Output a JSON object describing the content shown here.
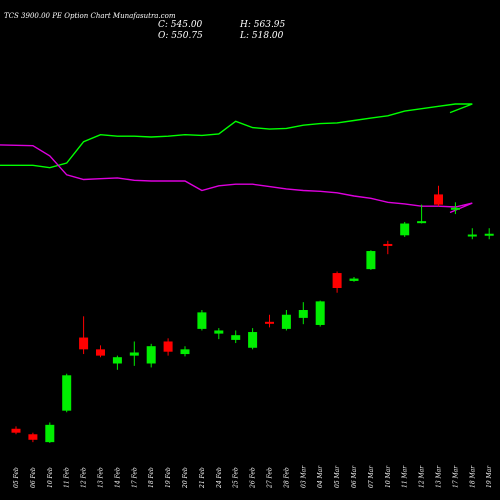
{
  "chart_data": {
    "type": "candlestick",
    "title": "TCS 3900.00 PE Option Chart Munafasutra.com",
    "summary": {
      "C": "545.00",
      "O": "550.75",
      "H": "563.95",
      "L": "518.00"
    },
    "summary_labels": {
      "C": "C:",
      "O": "O:",
      "H": "H:",
      "L": "L:"
    },
    "price_range": [
      130,
      645
    ],
    "categories": [
      "05 Feb",
      "06 Feb",
      "10 Feb",
      "11 Feb",
      "12 Feb",
      "13 Feb",
      "14 Feb",
      "17 Feb",
      "18 Feb",
      "19 Feb",
      "20 Feb",
      "21 Feb",
      "24 Feb",
      "25 Feb",
      "26 Feb",
      "27 Feb",
      "28 Feb",
      "03 Mar",
      "04 Mar",
      "05 Mar",
      "06 Mar",
      "07 Mar",
      "10 Mar",
      "11 Mar",
      "12 Mar",
      "13 Mar",
      "17 Mar",
      "18 Mar",
      "19 Mar"
    ],
    "candles": [
      {
        "date": "05 Feb",
        "open": 157,
        "high": 160,
        "low": 150,
        "close": 152
      },
      {
        "date": "06 Feb",
        "open": 150,
        "high": 152,
        "low": 140,
        "close": 143
      },
      {
        "date": "10 Feb",
        "open": 140,
        "high": 165,
        "low": 139,
        "close": 162
      },
      {
        "date": "11 Feb",
        "open": 180,
        "high": 227,
        "low": 178,
        "close": 225
      },
      {
        "date": "12 Feb",
        "open": 273,
        "high": 300,
        "low": 252,
        "close": 258
      },
      {
        "date": "13 Feb",
        "open": 258,
        "high": 263,
        "low": 248,
        "close": 250
      },
      {
        "date": "14 Feb",
        "open": 240,
        "high": 250,
        "low": 232,
        "close": 248
      },
      {
        "date": "17 Feb",
        "open": 250,
        "high": 268,
        "low": 237,
        "close": 254
      },
      {
        "date": "18 Feb",
        "open": 240,
        "high": 265,
        "low": 235,
        "close": 262
      },
      {
        "date": "19 Feb",
        "open": 268,
        "high": 272,
        "low": 250,
        "close": 255
      },
      {
        "date": "20 Feb",
        "open": 252,
        "high": 262,
        "low": 249,
        "close": 258
      },
      {
        "date": "21 Feb",
        "open": 284,
        "high": 308,
        "low": 282,
        "close": 305
      },
      {
        "date": "24 Feb",
        "open": 278,
        "high": 285,
        "low": 271,
        "close": 282
      },
      {
        "date": "25 Feb",
        "open": 270,
        "high": 282,
        "low": 266,
        "close": 276
      },
      {
        "date": "26 Feb",
        "open": 260,
        "high": 285,
        "low": 258,
        "close": 280
      },
      {
        "date": "27 Feb",
        "open": 293,
        "high": 302,
        "low": 286,
        "close": 292
      },
      {
        "date": "28 Feb",
        "open": 284,
        "high": 308,
        "low": 282,
        "close": 302
      },
      {
        "date": "03 Mar",
        "open": 298,
        "high": 318,
        "low": 290,
        "close": 308
      },
      {
        "date": "04 Mar",
        "open": 289,
        "high": 320,
        "low": 287,
        "close": 319
      },
      {
        "date": "05 Mar",
        "open": 355,
        "high": 357,
        "low": 330,
        "close": 336
      },
      {
        "date": "06 Mar",
        "open": 345,
        "high": 350,
        "low": 344,
        "close": 348
      },
      {
        "date": "07 Mar",
        "open": 360,
        "high": 384,
        "low": 359,
        "close": 383
      },
      {
        "date": "10 Mar",
        "open": 392,
        "high": 396,
        "low": 379,
        "close": 390
      },
      {
        "date": "11 Mar",
        "open": 403,
        "high": 420,
        "low": 401,
        "close": 418
      },
      {
        "date": "12 Mar",
        "open": 420,
        "high": 442,
        "low": 418,
        "close": 421
      },
      {
        "date": "13 Mar",
        "open": 455,
        "high": 466,
        "low": 440,
        "close": 442
      },
      {
        "date": "17 Mar",
        "open": 438,
        "high": 445,
        "low": 430,
        "close": 438
      },
      {
        "date": "18 Mar",
        "open": 404,
        "high": 412,
        "low": 398,
        "close": 404
      },
      {
        "date": "19 Mar",
        "open": 404,
        "high": 412,
        "low": 398,
        "close": 405
      }
    ],
    "overlay_lines": [
      {
        "color": "#00ff00",
        "values": [
          492,
          492,
          489,
          495,
          522,
          531,
          529,
          529,
          528,
          529,
          531,
          530,
          532,
          548,
          540,
          538,
          539,
          543,
          545,
          546,
          549,
          552,
          555,
          561,
          564,
          567,
          570,
          570,
          559
        ]
      },
      {
        "color": "#dd00dd",
        "values": [
          518,
          517,
          504,
          480,
          474,
          475,
          476,
          473,
          472,
          472,
          472,
          460,
          466,
          468,
          468,
          465,
          462,
          460,
          459,
          457,
          453,
          450,
          445,
          443,
          440,
          440,
          439,
          444,
          432
        ]
      }
    ],
    "colors": {
      "up": "#00ee00",
      "down": "#ff0000",
      "background": "#000000",
      "text": "#ffffff"
    },
    "grid": false
  }
}
